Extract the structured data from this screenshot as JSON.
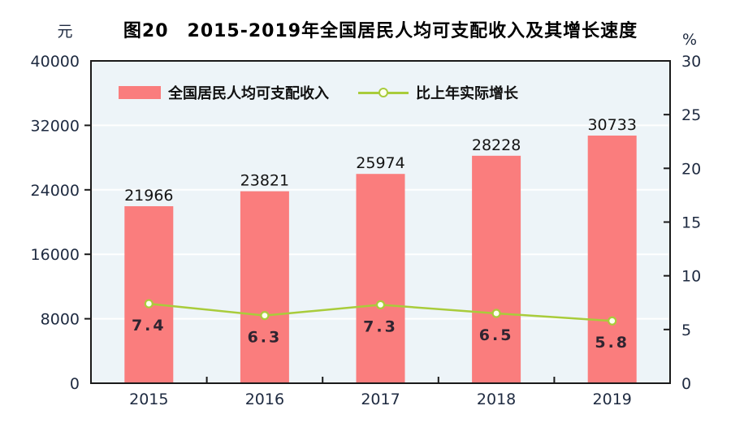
{
  "figure": {
    "title": "图20　2015-2019年全国居民人均可支配收入及其增长速度",
    "left_unit": "元",
    "right_unit": "%"
  },
  "legend": {
    "bar_label": "全国居民人均可支配收入",
    "line_label": "比上年实际增长"
  },
  "colors": {
    "bar": "#FA7D7D",
    "line": "#A9CC3B",
    "marker_fill": "#FDFFF0",
    "plot_bg": "#EDF4F8",
    "grid": "#FFFFFF",
    "axis": "#1A1A1A",
    "tick_text": "#1E2A40",
    "bar_value_text": "#141414",
    "growth_value_text": "#2F2430"
  },
  "chart_data": {
    "type": "bar",
    "combo": "bar+line",
    "title": "图20　2015-2019年全国居民人均可支配收入及其增长速度",
    "categories": [
      "2015",
      "2016",
      "2017",
      "2018",
      "2019"
    ],
    "series": [
      {
        "name": "全国居民人均可支配收入",
        "type": "bar",
        "axis": "left",
        "values": [
          21966,
          23821,
          25974,
          28228,
          30733
        ]
      },
      {
        "name": "比上年实际增长",
        "type": "line",
        "axis": "right",
        "values": [
          7.4,
          6.3,
          7.3,
          6.5,
          5.8
        ]
      }
    ],
    "left_axis": {
      "label": "元",
      "min": 0,
      "max": 40000,
      "ticks": [
        0,
        8000,
        16000,
        24000,
        32000,
        40000
      ]
    },
    "right_axis": {
      "label": "%",
      "min": 0,
      "max": 30,
      "ticks": [
        0,
        5,
        10,
        15,
        20,
        25,
        30
      ]
    },
    "grid": true,
    "gridline_axis": "left",
    "legend_position": "top-left-inside"
  }
}
